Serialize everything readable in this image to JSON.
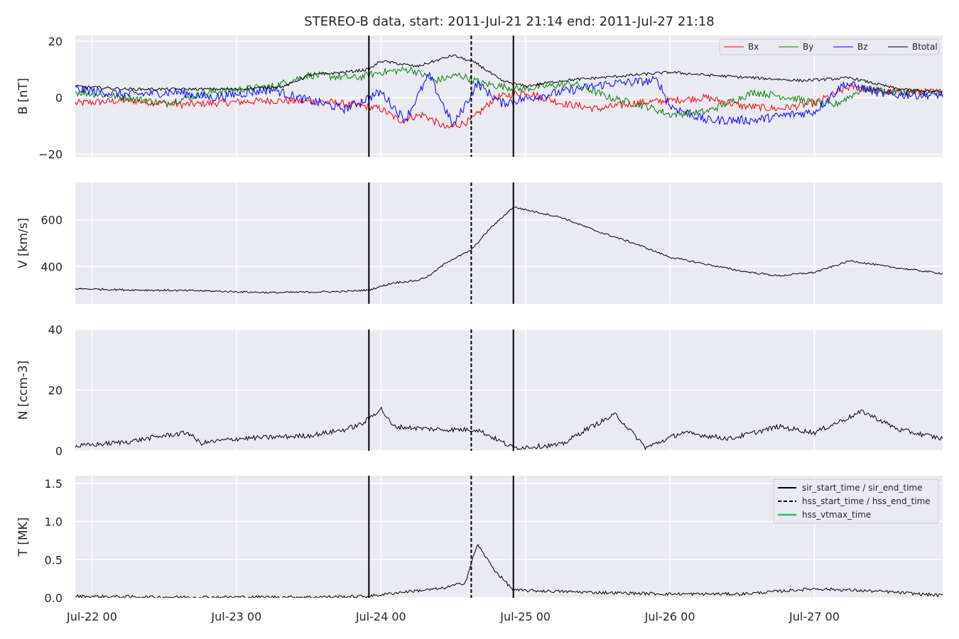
{
  "chart_data": {
    "type": "line",
    "title": "STEREO-B data, start: 2011-Jul-21 21:14  end: 2011-Jul-27 21:18",
    "x_range": [
      "2011-07-21 21:14",
      "2011-07-27 21:18"
    ],
    "x_ticks": [
      {
        "date": "2011-07-22 00:00",
        "label": "Jul-22 00"
      },
      {
        "date": "2011-07-23 00:00",
        "label": "Jul-23 00"
      },
      {
        "date": "2011-07-24 00:00",
        "label": "Jul-24 00"
      },
      {
        "date": "2011-07-25 00:00",
        "label": "Jul-25 00"
      },
      {
        "date": "2011-07-26 00:00",
        "label": "Jul-26 00"
      },
      {
        "date": "2011-07-27 00:00",
        "label": "Jul-27 00"
      }
    ],
    "event_markers": [
      {
        "name": "sir_start_time",
        "date": "2011-07-23 22:00",
        "style": "solid"
      },
      {
        "name": "hss_start_time",
        "date": "2011-07-24 15:00",
        "style": "dashed"
      },
      {
        "name": "sir_end_time",
        "date": "2011-07-24 22:00",
        "style": "solid"
      }
    ],
    "panels": [
      {
        "id": "B",
        "ylabel": "B [nT]",
        "ylim": [
          -21,
          22
        ],
        "yticks": [
          {
            "v": -20,
            "label": "−20"
          },
          {
            "v": 0,
            "label": "0"
          },
          {
            "v": 20,
            "label": "20"
          }
        ],
        "legend": {
          "position": "top-right",
          "entries": [
            "Bx",
            "By",
            "Bz",
            "Btotal"
          ]
        },
        "series": [
          {
            "name": "Bx",
            "color": "#ff0000",
            "noise": 1.3,
            "points": [
              [
                "2011-07-21 21:14",
                -2
              ],
              [
                "2011-07-22 06:00",
                -1
              ],
              [
                "2011-07-22 15:00",
                -2.5
              ],
              [
                "2011-07-23 06:00",
                -1
              ],
              [
                "2011-07-23 15:00",
                -1.5
              ],
              [
                "2011-07-23 21:00",
                -3
              ],
              [
                "2011-07-24 00:00",
                -4
              ],
              [
                "2011-07-24 03:00",
                -8
              ],
              [
                "2011-07-24 07:00",
                -6
              ],
              [
                "2011-07-24 11:00",
                -11
              ],
              [
                "2011-07-24 15:00",
                -8
              ],
              [
                "2011-07-24 19:00",
                0
              ],
              [
                "2011-07-25 00:00",
                2
              ],
              [
                "2011-07-25 06:00",
                -2
              ],
              [
                "2011-07-25 12:00",
                -4
              ],
              [
                "2011-07-25 18:00",
                -2
              ],
              [
                "2011-07-26 00:00",
                -1
              ],
              [
                "2011-07-26 06:00",
                0
              ],
              [
                "2011-07-26 12:00",
                -3
              ],
              [
                "2011-07-26 18:00",
                -4
              ],
              [
                "2011-07-27 00:00",
                -2
              ],
              [
                "2011-07-27 06:00",
                4
              ],
              [
                "2011-07-27 12:00",
                2
              ],
              [
                "2011-07-27 21:18",
                2
              ]
            ]
          },
          {
            "name": "By",
            "color": "#008000",
            "noise": 1.3,
            "points": [
              [
                "2011-07-21 21:14",
                2
              ],
              [
                "2011-07-22 06:00",
                0
              ],
              [
                "2011-07-22 12:00",
                -2
              ],
              [
                "2011-07-22 20:00",
                2
              ],
              [
                "2011-07-23 06:00",
                4
              ],
              [
                "2011-07-23 12:00",
                8
              ],
              [
                "2011-07-23 20:00",
                7
              ],
              [
                "2011-07-24 00:00",
                9
              ],
              [
                "2011-07-24 05:00",
                10
              ],
              [
                "2011-07-24 09:00",
                6
              ],
              [
                "2011-07-24 13:00",
                8
              ],
              [
                "2011-07-24 17:00",
                5
              ],
              [
                "2011-07-24 23:00",
                3
              ],
              [
                "2011-07-25 08:00",
                5
              ],
              [
                "2011-07-25 14:00",
                0
              ],
              [
                "2011-07-25 20:00",
                -3
              ],
              [
                "2011-07-26 00:00",
                -6
              ],
              [
                "2011-07-26 06:00",
                -5
              ],
              [
                "2011-07-26 14:00",
                2
              ],
              [
                "2011-07-26 20:00",
                0
              ],
              [
                "2011-07-27 03:00",
                -3
              ],
              [
                "2011-07-27 08:00",
                3
              ],
              [
                "2011-07-27 14:00",
                2
              ],
              [
                "2011-07-27 21:18",
                1
              ]
            ]
          },
          {
            "name": "Bz",
            "color": "#0000ff",
            "noise": 1.6,
            "points": [
              [
                "2011-07-21 21:14",
                3
              ],
              [
                "2011-07-22 06:00",
                1
              ],
              [
                "2011-07-22 14:00",
                2
              ],
              [
                "2011-07-22 20:00",
                0
              ],
              [
                "2011-07-23 06:00",
                3
              ],
              [
                "2011-07-23 10:00",
                0
              ],
              [
                "2011-07-23 18:00",
                -4
              ],
              [
                "2011-07-24 00:00",
                2
              ],
              [
                "2011-07-24 04:00",
                -8
              ],
              [
                "2011-07-24 08:00",
                8
              ],
              [
                "2011-07-24 12:00",
                -10
              ],
              [
                "2011-07-24 16:00",
                5
              ],
              [
                "2011-07-24 20:00",
                -2
              ],
              [
                "2011-07-25 06:00",
                2
              ],
              [
                "2011-07-25 14:00",
                5
              ],
              [
                "2011-07-25 22:00",
                6
              ],
              [
                "2011-07-26 00:00",
                -3
              ],
              [
                "2011-07-26 06:00",
                -8
              ],
              [
                "2011-07-26 14:00",
                -8
              ],
              [
                "2011-07-26 20:00",
                -6
              ],
              [
                "2011-07-27 00:00",
                -5
              ],
              [
                "2011-07-27 05:00",
                5
              ],
              [
                "2011-07-27 12:00",
                1
              ],
              [
                "2011-07-27 21:18",
                1
              ]
            ]
          },
          {
            "name": "Btotal",
            "color": "#000000",
            "noise": 0.5,
            "points": [
              [
                "2011-07-21 21:14",
                4
              ],
              [
                "2011-07-22 06:00",
                3
              ],
              [
                "2011-07-22 15:00",
                3
              ],
              [
                "2011-07-23 00:00",
                3
              ],
              [
                "2011-07-23 08:00",
                4
              ],
              [
                "2011-07-23 12:00",
                8
              ],
              [
                "2011-07-23 18:00",
                9
              ],
              [
                "2011-07-23 22:00",
                10
              ],
              [
                "2011-07-24 00:00",
                13
              ],
              [
                "2011-07-24 06:00",
                11
              ],
              [
                "2011-07-24 12:00",
                15
              ],
              [
                "2011-07-24 16:00",
                12
              ],
              [
                "2011-07-24 20:00",
                6
              ],
              [
                "2011-07-25 00:00",
                4
              ],
              [
                "2011-07-25 06:00",
                6
              ],
              [
                "2011-07-25 12:00",
                7
              ],
              [
                "2011-07-25 18:00",
                8
              ],
              [
                "2011-07-26 00:00",
                9
              ],
              [
                "2011-07-26 06:00",
                8
              ],
              [
                "2011-07-26 14:00",
                7
              ],
              [
                "2011-07-26 22:00",
                6
              ],
              [
                "2011-07-27 06:00",
                7
              ],
              [
                "2011-07-27 14:00",
                3
              ],
              [
                "2011-07-27 21:18",
                2
              ]
            ]
          }
        ]
      },
      {
        "id": "V",
        "ylabel": "V [km/s]",
        "ylim": [
          240,
          760
        ],
        "yticks": [
          {
            "v": 400,
            "label": "400"
          },
          {
            "v": 600,
            "label": "600"
          }
        ],
        "series": [
          {
            "name": "",
            "color": "#000000",
            "noise": 4,
            "points": [
              [
                "2011-07-21 21:14",
                305
              ],
              [
                "2011-07-22 06:00",
                300
              ],
              [
                "2011-07-22 18:00",
                296
              ],
              [
                "2011-07-23 06:00",
                288
              ],
              [
                "2011-07-23 18:00",
                293
              ],
              [
                "2011-07-23 22:00",
                300
              ],
              [
                "2011-07-24 02:00",
                330
              ],
              [
                "2011-07-24 06:00",
                340
              ],
              [
                "2011-07-24 08:00",
                360
              ],
              [
                "2011-07-24 11:00",
                420
              ],
              [
                "2011-07-24 15:00",
                470
              ],
              [
                "2011-07-24 18:00",
                560
              ],
              [
                "2011-07-24 22:00",
                655
              ],
              [
                "2011-07-25 06:00",
                610
              ],
              [
                "2011-07-25 12:00",
                550
              ],
              [
                "2011-07-25 18:00",
                500
              ],
              [
                "2011-07-26 00:00",
                440
              ],
              [
                "2011-07-26 06:00",
                410
              ],
              [
                "2011-07-26 12:00",
                380
              ],
              [
                "2011-07-26 18:00",
                360
              ],
              [
                "2011-07-27 00:00",
                375
              ],
              [
                "2011-07-27 06:00",
                425
              ],
              [
                "2011-07-27 12:00",
                400
              ],
              [
                "2011-07-27 21:18",
                370
              ]
            ]
          }
        ]
      },
      {
        "id": "N",
        "ylabel": "N [ccm-3]",
        "ylim": [
          0,
          40
        ],
        "yticks": [
          {
            "v": 0,
            "label": "0"
          },
          {
            "v": 20,
            "label": "20"
          },
          {
            "v": 40,
            "label": "40"
          }
        ],
        "series": [
          {
            "name": "",
            "color": "#000000",
            "noise": 0.8,
            "points": [
              [
                "2011-07-21 21:14",
                1.5
              ],
              [
                "2011-07-22 06:00",
                3
              ],
              [
                "2011-07-22 12:00",
                5
              ],
              [
                "2011-07-22 16:00",
                6
              ],
              [
                "2011-07-22 18:00",
                2.5
              ],
              [
                "2011-07-23 00:00",
                4
              ],
              [
                "2011-07-23 12:00",
                5
              ],
              [
                "2011-07-23 18:00",
                7
              ],
              [
                "2011-07-23 21:00",
                9
              ],
              [
                "2011-07-24 00:00",
                14
              ],
              [
                "2011-07-24 02:00",
                8
              ],
              [
                "2011-07-24 10:00",
                7
              ],
              [
                "2011-07-24 16:00",
                7
              ],
              [
                "2011-07-24 22:00",
                1
              ],
              [
                "2011-07-25 06:00",
                2
              ],
              [
                "2011-07-25 10:00",
                7
              ],
              [
                "2011-07-25 15:00",
                12
              ],
              [
                "2011-07-25 20:00",
                1
              ],
              [
                "2011-07-26 02:00",
                6
              ],
              [
                "2011-07-26 10:00",
                4
              ],
              [
                "2011-07-26 18:00",
                8
              ],
              [
                "2011-07-27 00:00",
                6
              ],
              [
                "2011-07-27 08:00",
                13
              ],
              [
                "2011-07-27 14:00",
                7
              ],
              [
                "2011-07-27 21:18",
                4
              ]
            ]
          }
        ]
      },
      {
        "id": "T",
        "ylabel": "T [MK]",
        "ylim": [
          0,
          1.6
        ],
        "yticks": [
          {
            "v": 0,
            "label": "0.0"
          },
          {
            "v": 0.5,
            "label": "0.5"
          },
          {
            "v": 1.0,
            "label": "1.0"
          },
          {
            "v": 1.5,
            "label": "1.5"
          }
        ],
        "legend": {
          "position": "top-right",
          "entries": [
            "sir_start_time / sir_end_time",
            "hss_start_time / hss_end_time",
            "hss_vtmax_time"
          ],
          "colors": [
            "#000000",
            "#000000",
            "#2ebd59"
          ]
        },
        "series": [
          {
            "name": "",
            "color": "#000000",
            "noise": 0.02,
            "points": [
              [
                "2011-07-21 21:14",
                0.02
              ],
              [
                "2011-07-22 12:00",
                0.01
              ],
              [
                "2011-07-23 12:00",
                0.01
              ],
              [
                "2011-07-23 22:00",
                0.02
              ],
              [
                "2011-07-24 04:00",
                0.08
              ],
              [
                "2011-07-24 10:00",
                0.12
              ],
              [
                "2011-07-24 14:00",
                0.2
              ],
              [
                "2011-07-24 16:00",
                0.7
              ],
              [
                "2011-07-24 19:00",
                0.35
              ],
              [
                "2011-07-24 22:00",
                0.1
              ],
              [
                "2011-07-25 12:00",
                0.07
              ],
              [
                "2011-07-26 00:00",
                0.05
              ],
              [
                "2011-07-26 12:00",
                0.05
              ],
              [
                "2011-07-27 00:00",
                0.12
              ],
              [
                "2011-07-27 12:00",
                0.08
              ],
              [
                "2011-07-27 21:18",
                0.03
              ]
            ]
          }
        ]
      }
    ]
  }
}
